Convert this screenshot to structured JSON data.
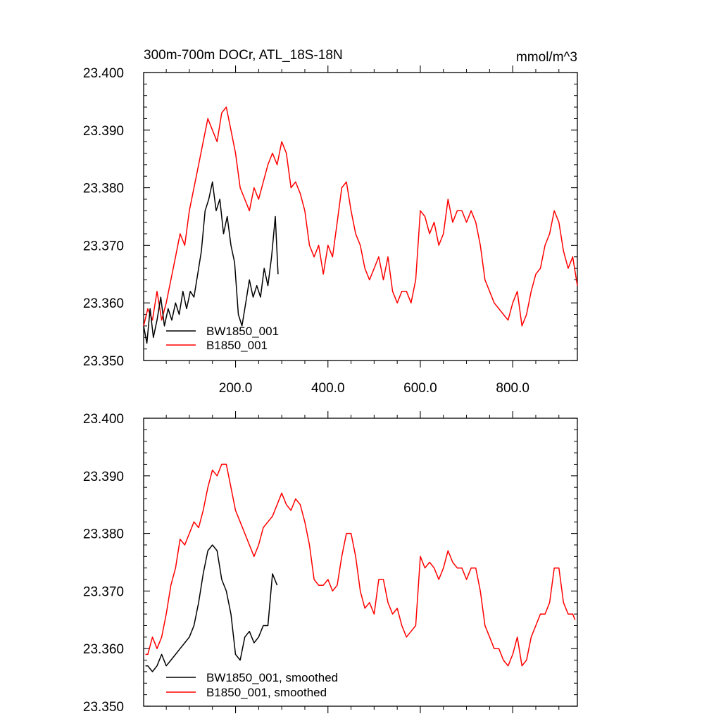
{
  "chart_data": [
    {
      "type": "line",
      "title": "300m-700m DOCr, ATL_18S-18N",
      "units": "mmol/m^3",
      "xlabel": "",
      "ylabel": "",
      "xlim": [
        1,
        940
      ],
      "ylim": [
        23.35,
        23.4
      ],
      "yticks": [
        "23.400",
        "23.390",
        "23.380",
        "23.370",
        "23.360",
        "23.350"
      ],
      "xticks": [
        "200.0",
        "400.0",
        "600.0",
        "800.0"
      ],
      "legend_position": "bottom-left",
      "series": [
        {
          "name": "BW1850_001",
          "color": "#000000",
          "x": [
            1,
            8,
            15,
            22,
            30,
            38,
            46,
            54,
            62,
            70,
            78,
            86,
            94,
            102,
            110,
            118,
            126,
            134,
            142,
            150,
            158,
            166,
            174,
            182,
            190,
            198,
            206,
            214,
            222,
            230,
            238,
            246,
            254,
            262,
            270,
            278,
            286,
            292
          ],
          "values": [
            23.356,
            23.353,
            23.359,
            23.354,
            23.357,
            23.361,
            23.356,
            23.359,
            23.357,
            23.36,
            23.358,
            23.362,
            23.359,
            23.362,
            23.361,
            23.365,
            23.369,
            23.376,
            23.378,
            23.381,
            23.376,
            23.378,
            23.372,
            23.375,
            23.37,
            23.367,
            23.358,
            23.356,
            23.36,
            23.364,
            23.361,
            23.363,
            23.361,
            23.366,
            23.363,
            23.368,
            23.375,
            23.365
          ]
        },
        {
          "name": "B1850_001",
          "color": "#ff0000",
          "x": [
            1,
            10,
            20,
            30,
            40,
            50,
            60,
            70,
            80,
            90,
            100,
            110,
            120,
            130,
            140,
            150,
            160,
            170,
            180,
            190,
            200,
            210,
            220,
            230,
            240,
            250,
            260,
            270,
            280,
            290,
            300,
            310,
            320,
            330,
            340,
            350,
            360,
            370,
            380,
            390,
            400,
            410,
            420,
            430,
            440,
            450,
            460,
            470,
            480,
            490,
            500,
            510,
            520,
            530,
            540,
            550,
            560,
            570,
            580,
            590,
            600,
            610,
            620,
            630,
            640,
            650,
            660,
            670,
            680,
            690,
            700,
            710,
            720,
            730,
            740,
            750,
            760,
            770,
            780,
            790,
            800,
            810,
            820,
            830,
            840,
            850,
            860,
            870,
            880,
            890,
            900,
            910,
            920,
            930,
            940
          ],
          "values": [
            23.356,
            23.359,
            23.357,
            23.362,
            23.357,
            23.36,
            23.364,
            23.368,
            23.372,
            23.37,
            23.376,
            23.38,
            23.384,
            23.388,
            23.392,
            23.39,
            23.388,
            23.393,
            23.394,
            23.39,
            23.386,
            23.38,
            23.378,
            23.376,
            23.38,
            23.378,
            23.381,
            23.384,
            23.386,
            23.384,
            23.388,
            23.386,
            23.38,
            23.381,
            23.379,
            23.376,
            23.37,
            23.368,
            23.37,
            23.365,
            23.37,
            23.368,
            23.374,
            23.38,
            23.381,
            23.376,
            23.372,
            23.37,
            23.366,
            23.364,
            23.366,
            23.368,
            23.364,
            23.368,
            23.362,
            23.36,
            23.362,
            23.362,
            23.36,
            23.364,
            23.376,
            23.375,
            23.372,
            23.374,
            23.37,
            23.372,
            23.378,
            23.374,
            23.376,
            23.376,
            23.374,
            23.376,
            23.374,
            23.37,
            23.364,
            23.362,
            23.36,
            23.359,
            23.358,
            23.357,
            23.36,
            23.362,
            23.356,
            23.358,
            23.362,
            23.365,
            23.366,
            23.37,
            23.372,
            23.376,
            23.374,
            23.369,
            23.366,
            23.368,
            23.363
          ]
        }
      ]
    },
    {
      "type": "line",
      "title": "",
      "units": "",
      "xlabel": "",
      "ylabel": "",
      "xlim": [
        1,
        940
      ],
      "ylim": [
        23.35,
        23.4
      ],
      "yticks": [
        "23.400",
        "23.390",
        "23.380",
        "23.370",
        "23.360",
        "23.350"
      ],
      "xticks": [],
      "legend_position": "bottom-left",
      "series": [
        {
          "name": "BW1850_001, smoothed",
          "color": "#000000",
          "x": [
            5,
            10,
            20,
            30,
            40,
            50,
            60,
            70,
            80,
            90,
            100,
            110,
            120,
            130,
            140,
            150,
            160,
            170,
            180,
            190,
            200,
            210,
            220,
            230,
            240,
            250,
            260,
            270,
            280,
            290
          ],
          "values": [
            23.357,
            23.357,
            23.356,
            23.357,
            23.359,
            23.357,
            23.358,
            23.359,
            23.36,
            23.361,
            23.362,
            23.364,
            23.368,
            23.373,
            23.377,
            23.378,
            23.377,
            23.372,
            23.37,
            23.366,
            23.359,
            23.358,
            23.362,
            23.363,
            23.361,
            23.362,
            23.364,
            23.364,
            23.373,
            23.371
          ]
        },
        {
          "name": "B1850_001, smoothed",
          "color": "#ff0000",
          "x": [
            5,
            10,
            20,
            30,
            40,
            50,
            60,
            70,
            80,
            90,
            100,
            110,
            120,
            130,
            140,
            150,
            160,
            170,
            180,
            190,
            200,
            210,
            220,
            230,
            240,
            250,
            260,
            270,
            280,
            290,
            300,
            310,
            320,
            330,
            340,
            350,
            360,
            370,
            380,
            390,
            400,
            410,
            420,
            430,
            440,
            450,
            460,
            470,
            480,
            490,
            500,
            510,
            520,
            530,
            540,
            550,
            560,
            570,
            580,
            590,
            600,
            610,
            620,
            630,
            640,
            650,
            660,
            670,
            680,
            690,
            700,
            710,
            720,
            730,
            740,
            750,
            760,
            770,
            780,
            790,
            800,
            810,
            820,
            830,
            840,
            850,
            860,
            870,
            880,
            890,
            900,
            910,
            920,
            930,
            935
          ],
          "values": [
            23.359,
            23.359,
            23.362,
            23.36,
            23.362,
            23.366,
            23.371,
            23.374,
            23.379,
            23.378,
            23.38,
            23.382,
            23.381,
            23.384,
            23.388,
            23.391,
            23.39,
            23.392,
            23.392,
            23.388,
            23.384,
            23.382,
            23.38,
            23.378,
            23.376,
            23.378,
            23.381,
            23.382,
            23.383,
            23.385,
            23.387,
            23.385,
            23.384,
            23.386,
            23.385,
            23.382,
            23.378,
            23.372,
            23.371,
            23.371,
            23.372,
            23.37,
            23.371,
            23.376,
            23.38,
            23.38,
            23.376,
            23.37,
            23.367,
            23.368,
            23.366,
            23.372,
            23.372,
            23.368,
            23.366,
            23.367,
            23.364,
            23.362,
            23.363,
            23.364,
            23.376,
            23.374,
            23.375,
            23.374,
            23.372,
            23.374,
            23.377,
            23.375,
            23.374,
            23.374,
            23.372,
            23.374,
            23.374,
            23.37,
            23.364,
            23.362,
            23.36,
            23.36,
            23.358,
            23.357,
            23.359,
            23.362,
            23.357,
            23.358,
            23.362,
            23.364,
            23.366,
            23.366,
            23.368,
            23.374,
            23.374,
            23.368,
            23.366,
            23.366,
            23.365
          ]
        }
      ]
    }
  ]
}
